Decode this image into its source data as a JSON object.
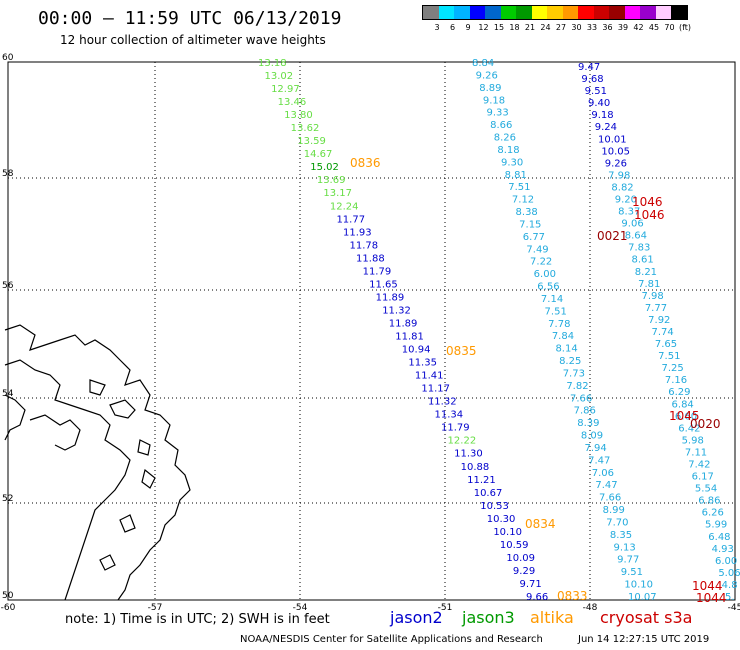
{
  "header": {
    "title": "00:00 — 11:59 UTC 06/13/2019",
    "subtitle": "12 hour collection of altimeter wave heights"
  },
  "scale": {
    "colors": [
      "#7f7f7f",
      "#00e5ff",
      "#00b4ff",
      "#0000ff",
      "#0066cc",
      "#00cc00",
      "#009900",
      "#ffff00",
      "#ffcc00",
      "#ff9900",
      "#ff0000",
      "#cc0000",
      "#990000",
      "#ff00ff",
      "#9900cc",
      "#ffccff",
      "#000000"
    ],
    "labels": [
      "3",
      "6",
      "9",
      "12",
      "15",
      "18",
      "21",
      "24",
      "27",
      "30",
      "33",
      "36",
      "39",
      "42",
      "45",
      "70",
      "(ft)"
    ]
  },
  "axes": {
    "lat_labels": [
      "60",
      "58",
      "56",
      "54",
      "52",
      "50"
    ],
    "lon_labels": [
      "-60",
      "-57",
      "-54",
      "-51",
      "-48",
      "-45"
    ]
  },
  "note": "note:  1) Time is in UTC;  2) SWH is in feet",
  "legend": [
    {
      "name": "jason2",
      "color": "#0000cc"
    },
    {
      "name": "jason3",
      "color": "#009900"
    },
    {
      "name": "altika",
      "color": "#ff9900"
    },
    {
      "name": "cryosat s3a",
      "color": "#cc0000"
    }
  ],
  "footer": "NOAA/NESDIS Center for Satellite Applications and Research",
  "footer_time": "Jun 14 12:27:15 UTC 2019",
  "tracks": {
    "track1": [
      "13.18",
      "13.02",
      "12.97",
      "13.46",
      "13.80",
      "13.62",
      "13.59",
      "14.67",
      "15.02",
      "13.69",
      "13.17",
      "12.24",
      "11.77",
      "11.93",
      "11.78",
      "11.88",
      "11.79",
      "11.65",
      "11.89",
      "11.32",
      "11.89",
      "11.81",
      "10.94",
      "11.35",
      "11.41",
      "11.17",
      "11.32",
      "11.34",
      "11.79",
      "12.22",
      "11.30",
      "10.88",
      "11.21",
      "10.67",
      "10.53",
      "10.30",
      "10.10",
      "10.59",
      "10.09",
      "9.29",
      "9.71",
      "9.66"
    ],
    "track1_colors": [
      "l",
      "l",
      "l",
      "l",
      "l",
      "l",
      "l",
      "l",
      "g",
      "l",
      "l",
      "l",
      "b",
      "b",
      "b",
      "b",
      "b",
      "b",
      "b",
      "b",
      "b",
      "b",
      "b",
      "b",
      "b",
      "b",
      "b",
      "b",
      "b",
      "l",
      "b",
      "b",
      "b",
      "b",
      "b",
      "b",
      "b",
      "b",
      "b",
      "b",
      "b",
      "b"
    ],
    "track2": [
      "8.84",
      "9.26",
      "8.89",
      "9.18",
      "9.33",
      "8.66",
      "8.26",
      "8.18",
      "9.30",
      "8.81",
      "7.51",
      "7.12",
      "8.38",
      "7.15",
      "6.77",
      "7.49",
      "7.22",
      "6.00",
      "6.56",
      "7.14",
      "7.51",
      "7.78",
      "7.84",
      "8.14",
      "8.25",
      "7.73",
      "7.82",
      "7.66",
      "7.86",
      "8.39",
      "8.09",
      "7.94",
      "7.47",
      "7.06",
      "7.47",
      "7.66",
      "8.99",
      "7.70",
      "8.35",
      "9.13",
      "9.77",
      "9.51",
      "10.10",
      "10.07"
    ],
    "track3": [
      "9.47",
      "9.68",
      "9.51",
      "9.40",
      "9.18",
      "9.24",
      "10.01",
      "10.05",
      "9.26",
      "7.98",
      "8.82",
      "9.20",
      "8.37",
      "9.06",
      "8.64",
      "7.83",
      "8.61",
      "8.21",
      "7.81",
      "7.98",
      "7.77",
      "7.92",
      "7.74",
      "7.65",
      "7.51",
      "7.25",
      "7.16",
      "6.29",
      "6.84",
      "6.60",
      "6.42",
      "5.98",
      "7.11",
      "7.42",
      "6.17",
      "5.54",
      "6.86",
      "6.26",
      "5.99",
      "6.48",
      "4.93",
      "6.00",
      "5.06",
      "4.8",
      "5."
    ],
    "time_labels": [
      {
        "text": "0836",
        "color": "#ff9900"
      },
      {
        "text": "0835",
        "color": "#ff9900"
      },
      {
        "text": "0834",
        "color": "#ff9900"
      },
      {
        "text": "0833",
        "color": "#ff9900"
      },
      {
        "text": "1046",
        "color": "#cc0000"
      },
      {
        "text": "1046",
        "color": "#cc0000"
      },
      {
        "text": "0021",
        "color": "#990000"
      },
      {
        "text": "1045",
        "color": "#cc0000"
      },
      {
        "text": "0020",
        "color": "#990000"
      },
      {
        "text": "1044",
        "color": "#cc0000"
      },
      {
        "text": "1044",
        "color": "#cc0000"
      }
    ]
  }
}
